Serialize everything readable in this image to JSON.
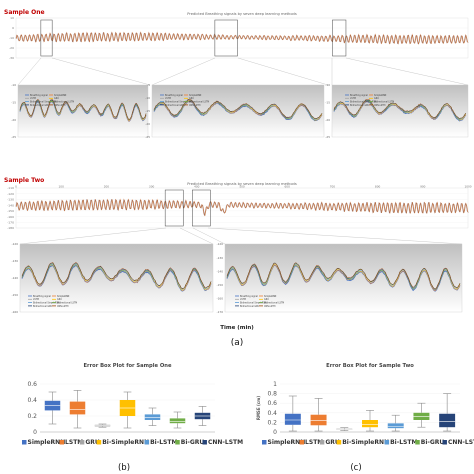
{
  "figure": {
    "part_a_label": "(a)",
    "part_b_label": "(b)",
    "part_c_label": "(c)",
    "time_axis_label": "Time (min)"
  },
  "series_colors": {
    "Breathing signal": "#4472c4",
    "SimpleRNN": "#ed7d31",
    "LSTM": "#a5a5a5",
    "GRU": "#ffc000",
    "Bidirectional SimpleRNN": "#5b9bd5",
    "Bidirectional LSTM": "#70ad47",
    "Bidirectional GRU": "#264478",
    "CNN-LSTM": "#9e480e"
  },
  "chart_data": [
    {
      "id": "sample_one_full",
      "type": "line",
      "tag": "Sample One",
      "title": "Predicted Breathing signals by seven deep learning methods",
      "y_ticks": [
        "10",
        "0",
        "-10",
        "-20",
        "-30"
      ],
      "ylim": [
        -30,
        10
      ],
      "series": [
        "Breathing signal",
        "SimpleRNN",
        "LSTM",
        "GRU",
        "Bidirectional SimpleRNN",
        "Bidirectional LSTM",
        "Bidirectional GRU",
        "CNN-LSTM"
      ]
    },
    {
      "id": "sample_one_zoom_1",
      "type": "line",
      "y_ticks": [
        "-10",
        "-15",
        "-20",
        "-25"
      ],
      "legend": [
        "Breathing signal",
        "SimpleRNN",
        "LSTM",
        "GRU",
        "Bidirectional SimpleRNN",
        "Bidirectional LSTM",
        "Bidirectional GRU",
        "CNN-LSTM"
      ]
    },
    {
      "id": "sample_one_zoom_2",
      "type": "line",
      "y_ticks": [
        "-5",
        "-10",
        "-15",
        "-20",
        "-25"
      ],
      "legend": [
        "Breathing signal",
        "SimpleRNN",
        "LSTM",
        "GRU",
        "Bidirectional SimpleRNN",
        "Bidirectional LSTM",
        "Bidirectional GRU",
        "CNN-LSTM"
      ]
    },
    {
      "id": "sample_one_zoom_3",
      "type": "line",
      "y_ticks": [
        "-10",
        "-15",
        "-20",
        "-25"
      ],
      "legend": [
        "Breathing signal",
        "SimpleRNN",
        "LSTM",
        "GRU",
        "Bidirectional SimpleRNN",
        "Bidirectional LSTM",
        "Bidirectional GRU",
        "CNN-LSTM"
      ]
    },
    {
      "id": "sample_two_full",
      "type": "line",
      "tag": "Sample Two",
      "title": "Predicted Breathing signals by seven deep learning methods",
      "y_ticks": [
        "-110",
        "-120",
        "-130",
        "-140",
        "-150",
        "-160",
        "-170",
        "-180"
      ],
      "x_ticks": [
        "0",
        "100",
        "200",
        "300",
        "400",
        "500",
        "600",
        "700",
        "800",
        "900",
        "1000"
      ],
      "ylim": [
        -180,
        -110
      ],
      "xlim": [
        0,
        1000
      ]
    },
    {
      "id": "sample_two_zoom_1",
      "type": "line",
      "y_ticks": [
        "-120",
        "-130",
        "-140",
        "-150",
        "-160"
      ],
      "legend": [
        "Breathing signal",
        "SimpleRNN",
        "LSTM",
        "GRU",
        "Bidirectional SimpleRNN",
        "Bidirectional LSTM",
        "Bidirectional GRU",
        "CNN-LSTM"
      ]
    },
    {
      "id": "sample_two_zoom_2",
      "type": "line",
      "y_ticks": [
        "-120",
        "-130",
        "-140",
        "-150",
        "-160",
        "-170"
      ],
      "legend": [
        "Breathing signal",
        "SimpleRNN",
        "LSTM",
        "GRU",
        "Bidirectional SimpleRNN",
        "Bidirectional LSTM",
        "Bidirectional GRU",
        "CNN-LSTM"
      ]
    },
    {
      "id": "box_sample_one",
      "type": "bar",
      "title": "Error Box Plot for Sample One",
      "ylim": [
        0,
        0.6
      ],
      "y_ticks": [
        "0.6",
        "0.4",
        "0.2",
        "0"
      ],
      "legend": [
        "SimpleRNN",
        "LSTM",
        "GRU",
        "Bi-SimpleRNN",
        "Bi-LSTM",
        "Bi-GRU",
        "CNN-LSTM"
      ],
      "boxes": [
        {
          "name": "SimpleRNN",
          "q1": 0.27,
          "median": 0.33,
          "q3": 0.39,
          "min": 0.1,
          "max": 0.5
        },
        {
          "name": "LSTM",
          "q1": 0.22,
          "median": 0.28,
          "q3": 0.38,
          "min": 0.05,
          "max": 0.52
        },
        {
          "name": "GRU",
          "q1": 0.07,
          "median": 0.08,
          "q3": 0.09,
          "min": 0.06,
          "max": 0.1
        },
        {
          "name": "Bi-SimpleRNN",
          "q1": 0.2,
          "median": 0.3,
          "q3": 0.4,
          "min": 0.05,
          "max": 0.5
        },
        {
          "name": "Bi-LSTM",
          "q1": 0.15,
          "median": 0.18,
          "q3": 0.22,
          "min": 0.08,
          "max": 0.3
        },
        {
          "name": "Bi-GRU",
          "q1": 0.11,
          "median": 0.13,
          "q3": 0.17,
          "min": 0.05,
          "max": 0.25
        },
        {
          "name": "CNN-LSTM",
          "q1": 0.16,
          "median": 0.2,
          "q3": 0.24,
          "min": 0.08,
          "max": 0.32
        }
      ]
    },
    {
      "id": "box_sample_two",
      "type": "bar",
      "title": "Error Box Plot for Sample Two",
      "ylabel": "RMSE (cm)",
      "ylim": [
        0,
        1
      ],
      "y_ticks": [
        "1",
        "0.8",
        "0.6",
        "0.4",
        "0.2",
        "0"
      ],
      "legend": [
        "SimpleRNN",
        "LSTM",
        "GRU",
        "Bi-SimpleRNN",
        "Bi-LSTM",
        "Bi-GRU",
        "CNN-LSTM"
      ],
      "boxes": [
        {
          "name": "SimpleRNN",
          "q1": 0.15,
          "median": 0.25,
          "q3": 0.38,
          "min": 0.02,
          "max": 0.75
        },
        {
          "name": "LSTM",
          "q1": 0.14,
          "median": 0.24,
          "q3": 0.36,
          "min": 0.02,
          "max": 0.7
        },
        {
          "name": "GRU",
          "q1": 0.05,
          "median": 0.06,
          "q3": 0.07,
          "min": 0.03,
          "max": 0.09
        },
        {
          "name": "Bi-SimpleRNN",
          "q1": 0.1,
          "median": 0.16,
          "q3": 0.25,
          "min": 0.02,
          "max": 0.45
        },
        {
          "name": "Bi-LSTM",
          "q1": 0.08,
          "median": 0.12,
          "q3": 0.18,
          "min": 0.02,
          "max": 0.35
        },
        {
          "name": "Bi-GRU",
          "q1": 0.25,
          "median": 0.32,
          "q3": 0.4,
          "min": 0.1,
          "max": 0.6
        },
        {
          "name": "CNN-LSTM",
          "q1": 0.1,
          "median": 0.22,
          "q3": 0.38,
          "min": 0.02,
          "max": 0.8
        }
      ]
    }
  ]
}
